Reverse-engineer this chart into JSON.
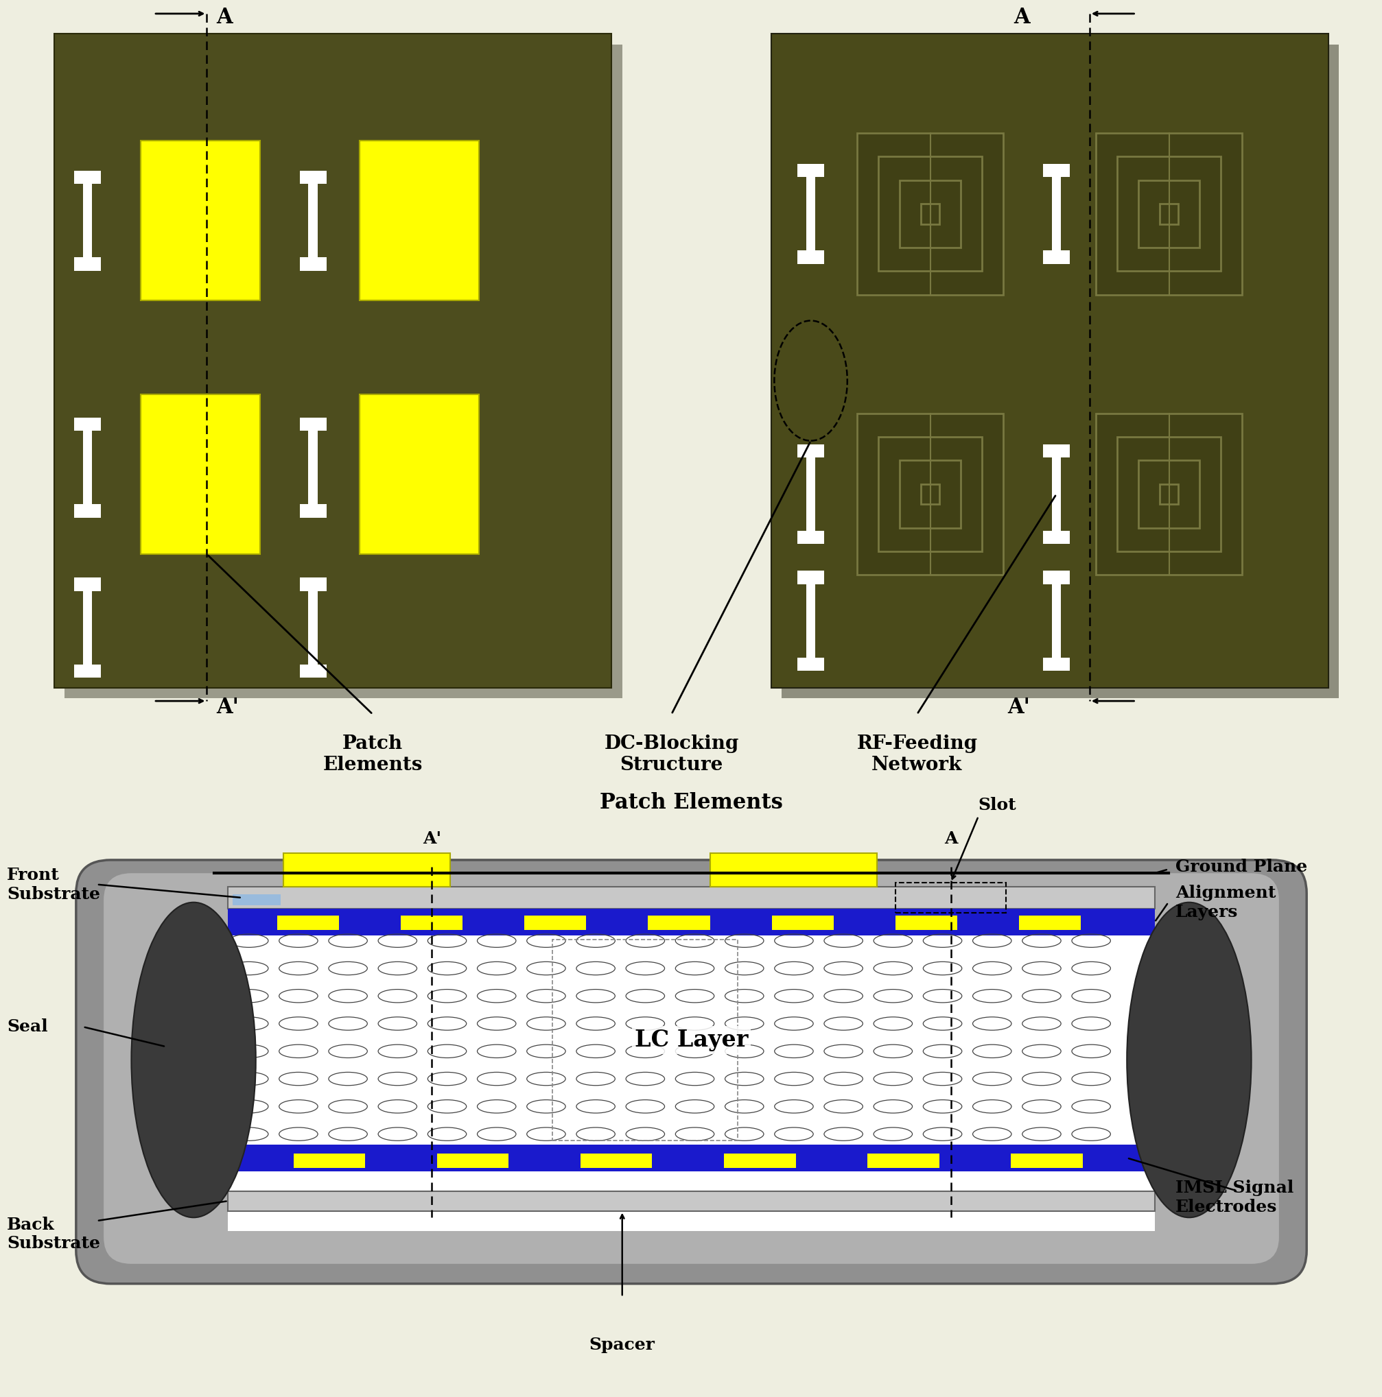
{
  "bg_color": "#eeeee0",
  "olive1": "#4d4d1e",
  "olive2": "#555522",
  "olive3": "#606030",
  "olive_right": "#4a4a1a",
  "yellow": "#ffff00",
  "yellow_edge": "#aaaa00",
  "white": "#ffffff",
  "blue_dark": "#1a1acc",
  "blue_mid": "#2222bb",
  "gray_outer": "#909090",
  "gray_inner": "#b0b0b0",
  "gray_sub": "#c8c8c8",
  "gray_seal": "#3a3a3a",
  "black": "#000000",
  "light_blue_rect": "#99bbdd",
  "fontsize_title": 22,
  "fontsize_label": 20,
  "fontsize_annot": 18,
  "fontsize_lc": 24,
  "top_labels": {
    "patch": "Patch\nElements",
    "dc": "DC-Blocking\nStructure",
    "rf": "RF-Feeding\nNetwork"
  },
  "bot_labels": {
    "front_sub": "Front\nSubstrate",
    "seal": "Seal",
    "back_sub": "Back\nSubstrate",
    "spacer": "Spacer",
    "patch_el": "Patch Elements",
    "slot": "Slot",
    "ground": "Ground Plane",
    "align": "Alignment\nLayers",
    "imsl": "IMSL Signal\nElectrodes",
    "lc": "LC Layer",
    "a": "A",
    "aprime": "A'"
  }
}
